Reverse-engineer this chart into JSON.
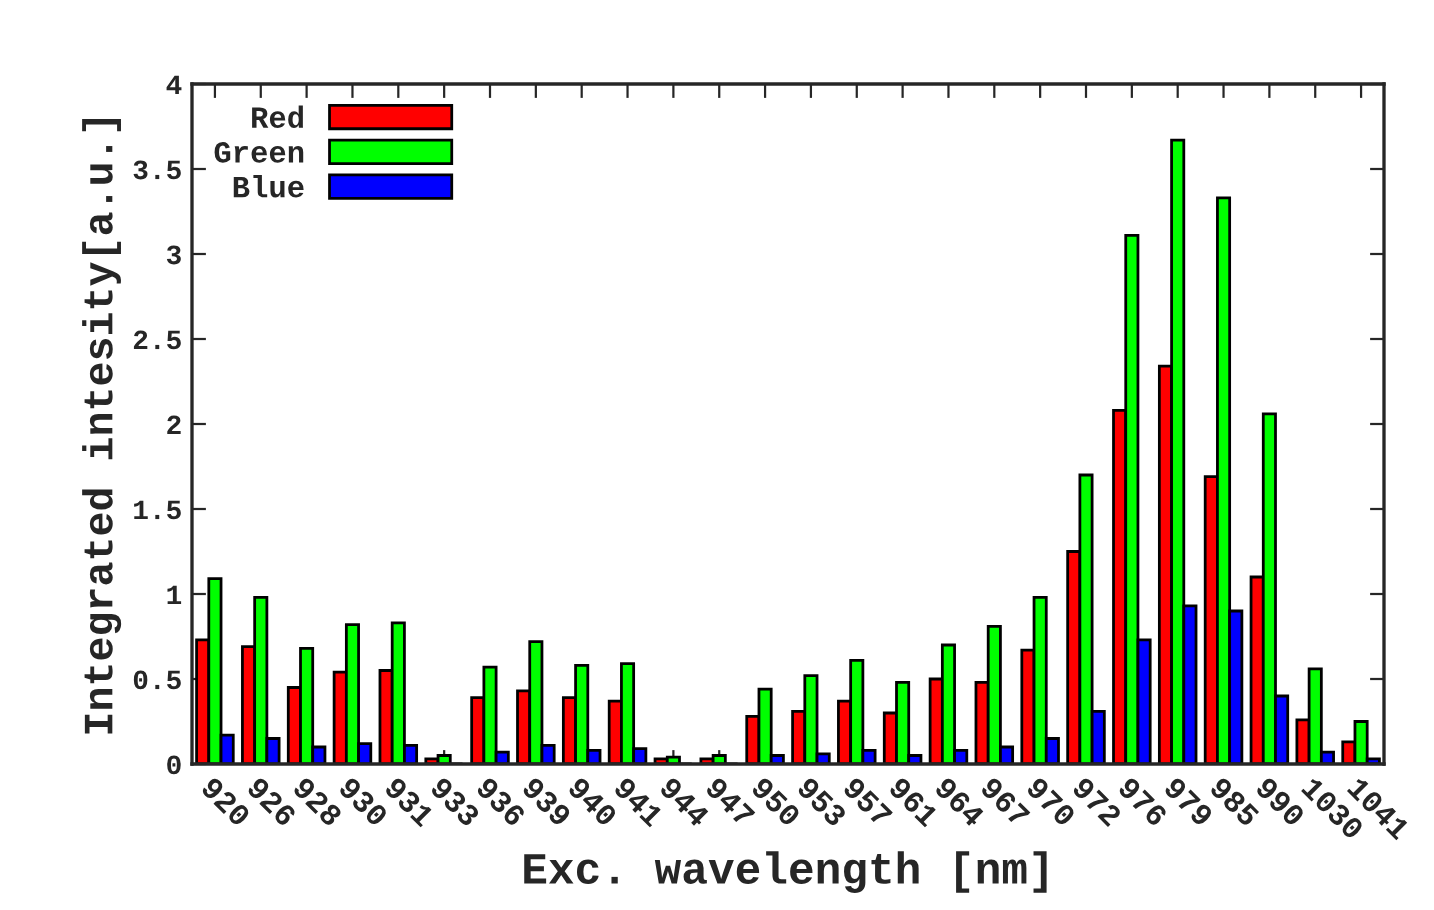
{
  "chart_data": {
    "type": "bar",
    "xlabel": "Exc. wavelength [nm]",
    "ylabel": "Integrated intesity[a.u.]",
    "categories": [
      "920",
      "926",
      "928",
      "930",
      "931",
      "933",
      "936",
      "939",
      "940",
      "941",
      "944",
      "947",
      "950",
      "953",
      "957",
      "961",
      "964",
      "967",
      "970",
      "972",
      "976",
      "979",
      "985",
      "990",
      "1030",
      "1041"
    ],
    "series": [
      {
        "name": "Red",
        "color": "#ff0000",
        "values": [
          0.73,
          0.69,
          0.45,
          0.54,
          0.55,
          0.03,
          0.39,
          0.43,
          0.39,
          0.37,
          0.03,
          0.03,
          0.28,
          0.31,
          0.37,
          0.3,
          0.5,
          0.48,
          0.67,
          1.25,
          2.08,
          2.34,
          1.69,
          1.1,
          0.26,
          0.13
        ]
      },
      {
        "name": "Green",
        "color": "#00ff00",
        "values": [
          1.09,
          0.98,
          0.68,
          0.82,
          0.83,
          0.05,
          0.57,
          0.72,
          0.58,
          0.59,
          0.04,
          0.05,
          0.44,
          0.52,
          0.61,
          0.48,
          0.7,
          0.81,
          0.98,
          1.7,
          3.11,
          3.67,
          3.33,
          2.06,
          0.56,
          0.25
        ]
      },
      {
        "name": "Blue",
        "color": "#0000ff",
        "values": [
          0.17,
          0.15,
          0.1,
          0.12,
          0.11,
          null,
          0.07,
          0.11,
          0.08,
          0.09,
          null,
          null,
          0.05,
          0.06,
          0.08,
          0.05,
          0.08,
          0.1,
          0.15,
          0.31,
          0.73,
          0.93,
          0.9,
          0.4,
          0.07,
          0.03
        ]
      }
    ],
    "ylim": [
      0,
      4
    ],
    "yticks": [
      0,
      0.5,
      1,
      1.5,
      2,
      2.5,
      3,
      3.5,
      4
    ],
    "grid": false,
    "legend": "top left"
  }
}
